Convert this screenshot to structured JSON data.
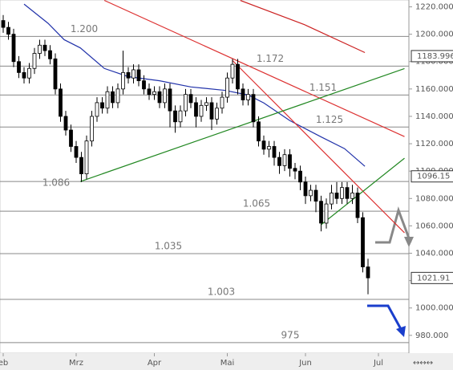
{
  "chart_data": {
    "type": "candlestick",
    "categories": [
      "eb",
      null,
      null,
      null,
      null,
      null,
      null,
      null,
      null,
      null,
      null,
      null,
      null,
      null,
      "Mrz",
      null,
      null,
      null,
      null,
      null,
      null,
      null,
      null,
      null,
      null,
      null,
      null,
      null,
      null,
      "Apr",
      null,
      null,
      null,
      null,
      null,
      null,
      null,
      null,
      null,
      null,
      null,
      null,
      null,
      "Mai",
      null,
      null,
      null,
      null,
      null,
      null,
      null,
      null,
      null,
      null,
      null,
      null,
      null,
      null,
      "Jun",
      null,
      null,
      null,
      null,
      null,
      null,
      null,
      null,
      null,
      null,
      null,
      null,
      null,
      "Jul",
      null
    ],
    "open": [
      1210,
      1205,
      1200,
      1180,
      1172,
      1168,
      1175,
      1186,
      1192,
      1188,
      1182,
      1160,
      1140,
      1130,
      1118,
      1110,
      1098,
      1122,
      1140,
      1150,
      1146,
      1158,
      1150,
      1160,
      1172,
      1168,
      1174,
      1166,
      1160,
      1156,
      1158,
      1150,
      1160,
      1144,
      1136,
      1144,
      1156,
      1150,
      1140,
      1148,
      1150,
      1138,
      1146,
      1154,
      1168,
      1178,
      1160,
      1152,
      1156,
      1136,
      1122,
      1116,
      1118,
      1110,
      1104,
      1112,
      1102,
      1100,
      1092,
      1082,
      1086,
      1078,
      1062,
      1076,
      1084,
      1080,
      1088,
      1080,
      1084,
      1066,
      1030,
      null,
      null,
      null
    ],
    "high": [
      1214,
      1209,
      1204,
      1184,
      1176,
      1179,
      1190,
      1196,
      1196,
      1192,
      1186,
      1164,
      1144,
      1134,
      1122,
      1114,
      1126,
      1144,
      1154,
      1154,
      1162,
      1162,
      1164,
      1188,
      1176,
      1178,
      1178,
      1170,
      1164,
      1162,
      1162,
      1164,
      1164,
      1148,
      1148,
      1160,
      1160,
      1154,
      1152,
      1154,
      1154,
      1150,
      1158,
      1172,
      1182,
      1182,
      1164,
      1160,
      1160,
      1140,
      1126,
      1122,
      1122,
      1114,
      1116,
      1116,
      1106,
      1104,
      1096,
      1090,
      1090,
      1082,
      1080,
      1090,
      1092,
      1092,
      1092,
      1090,
      1088,
      1070,
      1036,
      null,
      null,
      null
    ],
    "low": [
      1201,
      1196,
      1176,
      1168,
      1164,
      1164,
      1171,
      1182,
      1184,
      1178,
      1156,
      1136,
      1126,
      1114,
      1106,
      1092,
      1094,
      1118,
      1136,
      1142,
      1142,
      1146,
      1146,
      1156,
      1164,
      1164,
      1162,
      1156,
      1152,
      1152,
      1146,
      1146,
      1132,
      1128,
      1132,
      1140,
      1146,
      1132,
      1136,
      1144,
      1130,
      1134,
      1142,
      1150,
      1164,
      1156,
      1148,
      1148,
      1132,
      1118,
      1112,
      1110,
      1104,
      1098,
      1100,
      1096,
      1094,
      1086,
      1076,
      1078,
      1070,
      1056,
      1058,
      1072,
      1076,
      1076,
      1076,
      1076,
      1062,
      1026,
      1010,
      null,
      null,
      null
    ],
    "close": [
      1205,
      1200,
      1180,
      1172,
      1168,
      1175,
      1186,
      1192,
      1188,
      1182,
      1160,
      1140,
      1130,
      1118,
      1110,
      1098,
      1122,
      1140,
      1150,
      1146,
      1158,
      1150,
      1160,
      1172,
      1168,
      1174,
      1166,
      1160,
      1156,
      1158,
      1150,
      1160,
      1144,
      1136,
      1144,
      1156,
      1150,
      1140,
      1148,
      1150,
      1138,
      1146,
      1154,
      1168,
      1178,
      1160,
      1152,
      1156,
      1136,
      1122,
      1116,
      1118,
      1110,
      1104,
      1112,
      1102,
      1100,
      1092,
      1082,
      1086,
      1078,
      1062,
      1076,
      1084,
      1080,
      1088,
      1080,
      1084,
      1066,
      1030,
      1022,
      null,
      null,
      null
    ],
    "ylim": [
      967,
      1225
    ],
    "yticks": [
      {
        "value": 980,
        "label": "980.000"
      },
      {
        "value": 1000,
        "label": "1000.000"
      },
      {
        "value": 1020,
        "label": "1020.000"
      },
      {
        "value": 1040,
        "label": "1040.000"
      },
      {
        "value": 1060,
        "label": "1060.000"
      },
      {
        "value": 1080,
        "label": "1080.000"
      },
      {
        "value": 1100,
        "label": "1100.000"
      },
      {
        "value": 1120,
        "label": "1120.000"
      },
      {
        "value": 1140,
        "label": "1140.000"
      },
      {
        "value": 1160,
        "label": "1160.000"
      },
      {
        "value": 1180,
        "label": "1180.000"
      },
      {
        "value": 1200,
        "label": "1200.000"
      },
      {
        "value": 1220,
        "label": "1220.000"
      }
    ],
    "levels": [
      {
        "y": 1198.4,
        "text": "1.200"
      },
      {
        "y": 1176.7,
        "text": "1.172"
      },
      {
        "y": 1155.6,
        "text": "1.151"
      },
      {
        "y": 1132.2,
        "text": "1.125"
      },
      {
        "y": 1092.4,
        "text": "1.086"
      },
      {
        "y": 1070.7,
        "text": "1.065"
      },
      {
        "y": 1039.7,
        "text": "1.035"
      },
      {
        "y": 1006.3,
        "text": "1.003"
      },
      {
        "y": 974.7,
        "text": "975"
      }
    ],
    "price_tags": [
      {
        "value": 1183.996,
        "label": "1183.996",
        "color": "#333"
      },
      {
        "value": 1096.15,
        "label": "1096.15",
        "color": "#333"
      },
      {
        "value": 1021.91,
        "label": "1021.91",
        "color": "#333"
      }
    ],
    "lines": [
      {
        "color": "#2233aa",
        "x": [
          4,
          8.6,
          11.7,
          14.8,
          19.4,
          24,
          30,
          36,
          42.5,
          47,
          50,
          55,
          61,
          65.5,
          69.4
        ],
        "y": [
          1222,
          1208,
          1196,
          1190,
          1175,
          1169,
          1166,
          1161.5,
          1159,
          1155.6,
          1149.8,
          1136.9,
          1125,
          1116.4,
          1103.5
        ]
      },
      {
        "color": "#cc2222",
        "x": [
          45.5,
          57.8,
          69.4
        ],
        "y": [
          1224.7,
          1207,
          1186.6
        ]
      },
      {
        "color": "#dd3333",
        "x": [
          19.4,
          77
        ],
        "y": [
          1224.7,
          1125.2
        ]
      },
      {
        "color": "#dd3333",
        "x": [
          44,
          77
        ],
        "y": [
          1180.8,
          1054.9
        ]
      },
      {
        "color": "#228822",
        "x": [
          14.8,
          77
        ],
        "y": [
          1092.4,
          1174.9
        ]
      },
      {
        "color": "#228822",
        "x": [
          61,
          77
        ],
        "y": [
          1060.8,
          1109.4
        ]
      }
    ]
  }
}
